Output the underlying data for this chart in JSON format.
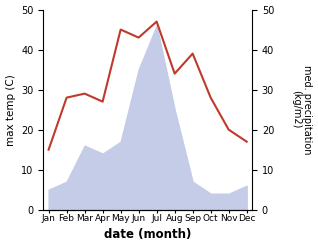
{
  "months": [
    "Jan",
    "Feb",
    "Mar",
    "Apr",
    "May",
    "Jun",
    "Jul",
    "Aug",
    "Sep",
    "Oct",
    "Nov",
    "Dec"
  ],
  "temperature": [
    15,
    28,
    29,
    27,
    45,
    43,
    47,
    34,
    39,
    28,
    20,
    17
  ],
  "precipitation": [
    5,
    7,
    16,
    14,
    17,
    35,
    46,
    25,
    7,
    4,
    4,
    6
  ],
  "temp_color": "#c0392b",
  "precip_fill_color": "#c5cce8",
  "xlabel": "date (month)",
  "ylabel_left": "max temp (C)",
  "ylabel_right": "med. precipitation\n(kg/m2)",
  "ylim": [
    0,
    50
  ],
  "yticks": [
    0,
    10,
    20,
    30,
    40,
    50
  ],
  "background_color": "#ffffff"
}
